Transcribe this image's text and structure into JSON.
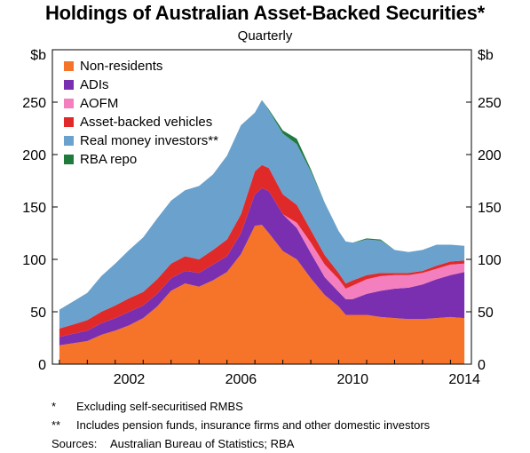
{
  "title": "Holdings of Australian Asset-Backed Securities*",
  "subtitle": "Quarterly",
  "notes": [
    {
      "mark": "*",
      "text": "Excluding self-securitised RMBS"
    },
    {
      "mark": "**",
      "text": "Includes pension funds, insurance firms and other domestic investors"
    }
  ],
  "sources": {
    "label": "Sources:",
    "text": "Australian Bureau of Statistics; RBA"
  },
  "colors": {
    "non_residents": "#f5742a",
    "adis": "#7a2fb0",
    "aofm": "#f47fbe",
    "abv": "#e02a2a",
    "real_money": "#6aa1cd",
    "rba_repo": "#1f7a3c"
  },
  "chart_data": {
    "type": "area",
    "stacked": true,
    "y_unit_left": "$b",
    "y_unit_right": "$b",
    "ylim": [
      0,
      300
    ],
    "yticks": [
      0,
      50,
      100,
      150,
      200,
      250
    ],
    "xlim": [
      1999.75,
      2014.75
    ],
    "xticks": [
      2002,
      2006,
      2010,
      2014
    ],
    "legend_position": "top-left",
    "x": [
      2000.0,
      2000.5,
      2001.0,
      2001.5,
      2002.0,
      2002.5,
      2003.0,
      2003.5,
      2004.0,
      2004.5,
      2005.0,
      2005.5,
      2006.0,
      2006.5,
      2007.0,
      2007.25,
      2007.5,
      2008.0,
      2008.5,
      2009.0,
      2009.5,
      2010.0,
      2010.25,
      2010.5,
      2011.0,
      2011.5,
      2012.0,
      2012.5,
      2013.0,
      2013.5,
      2014.0,
      2014.5
    ],
    "series": [
      {
        "name": "Non-residents",
        "key": "non_residents",
        "values": [
          18,
          20,
          22,
          28,
          32,
          37,
          44,
          55,
          70,
          77,
          74,
          80,
          88,
          105,
          132,
          133,
          125,
          108,
          100,
          82,
          66,
          55,
          47,
          47,
          47,
          45,
          44,
          43,
          43,
          44,
          45,
          44
        ]
      },
      {
        "name": "ADIs",
        "key": "adis",
        "values": [
          8,
          9,
          10,
          11,
          12,
          13,
          12,
          12,
          12,
          12,
          13,
          15,
          15,
          20,
          30,
          35,
          40,
          35,
          30,
          24,
          17,
          14,
          15,
          15,
          20,
          25,
          28,
          30,
          33,
          37,
          40,
          44
        ]
      },
      {
        "name": "AOFM",
        "key": "aofm",
        "values": [
          0,
          0,
          0,
          0,
          0,
          0,
          0,
          0,
          0,
          0,
          0,
          0,
          0,
          0,
          0,
          0,
          0,
          0,
          5,
          10,
          12,
          12,
          10,
          13,
          14,
          14,
          13,
          12,
          11,
          10,
          10,
          8
        ]
      },
      {
        "name": "Asset-backed vehicles",
        "key": "abv",
        "values": [
          8,
          9,
          10,
          11,
          12,
          13,
          13,
          14,
          14,
          14,
          13,
          14,
          16,
          18,
          22,
          22,
          22,
          19,
          17,
          12,
          9,
          6,
          5,
          5,
          4,
          3,
          2,
          2,
          2,
          3,
          3,
          3
        ]
      },
      {
        "name": "Real money investors**",
        "key": "real_money",
        "values": [
          18,
          22,
          26,
          34,
          40,
          46,
          52,
          58,
          60,
          63,
          70,
          72,
          80,
          85,
          56,
          62,
          55,
          58,
          58,
          56,
          50,
          40,
          40,
          36,
          34,
          31,
          22,
          20,
          20,
          20,
          16,
          14
        ]
      },
      {
        "name": "RBA repo",
        "key": "rba_repo",
        "values": [
          0,
          0,
          0,
          0,
          0,
          0,
          0,
          0,
          0,
          0,
          0,
          0,
          0,
          0,
          0,
          0,
          1,
          3,
          5,
          2,
          0,
          0,
          0,
          0,
          1,
          1,
          0,
          0,
          0,
          0,
          0,
          0
        ]
      }
    ]
  }
}
